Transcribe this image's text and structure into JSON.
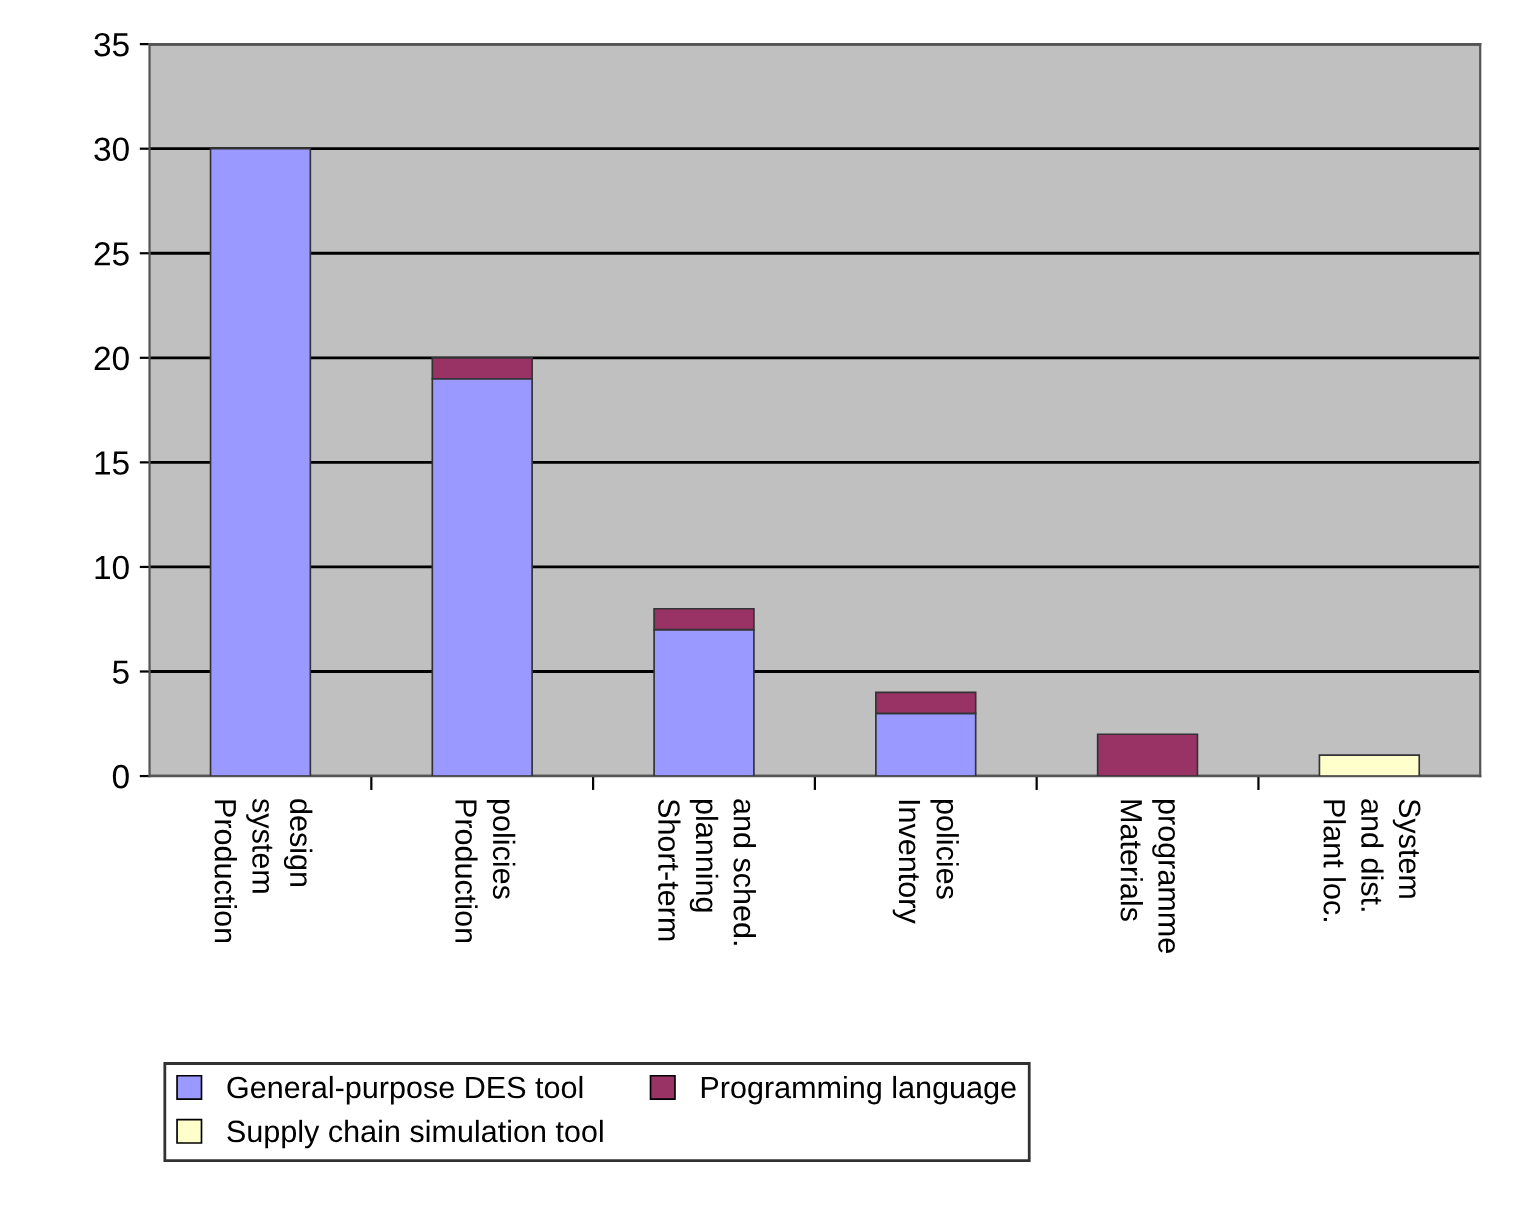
{
  "chart_data": {
    "type": "bar",
    "stacked": true,
    "categories": [
      "Production\nsystem\ndesign",
      "Production\npolicies",
      "Short-term\nplanning\nand sched.",
      "Inventory\npolicies",
      "Materials\nprogramme",
      "Plant loc.\nand dist.\nSystem"
    ],
    "series": [
      {
        "name": "General-purpose DES tool",
        "color": "#9999ff",
        "values": [
          30,
          19,
          7,
          3,
          0,
          0
        ]
      },
      {
        "name": "Programming language",
        "color": "#993366",
        "values": [
          0,
          1,
          1,
          1,
          2,
          0
        ]
      },
      {
        "name": "Supply chain simulation tool",
        "color": "#ffffcc",
        "values": [
          0,
          0,
          0,
          0,
          0,
          1
        ]
      }
    ],
    "ylim": [
      0,
      35
    ],
    "yticks": [
      0,
      5,
      10,
      15,
      20,
      25,
      30,
      35
    ],
    "grid": "y",
    "legend": "bottom"
  }
}
